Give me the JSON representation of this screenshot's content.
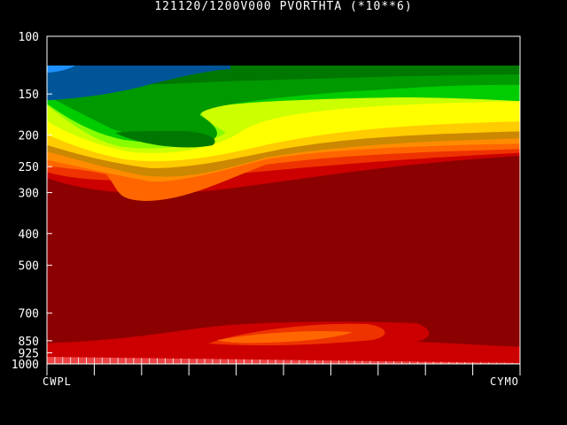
{
  "title": "121120/1200V000   PVORTHTA (*10**6)",
  "chart_data": {
    "type": "heatmap",
    "title": "121120/1200V000   PVORTHTA (*10**6)",
    "xlabel": "",
    "ylabel": "",
    "x_stations": [
      "CWPL",
      "CYMO"
    ],
    "y_axis": {
      "scale": "log",
      "reversed": true,
      "range": [
        1000,
        100
      ],
      "ticks": [
        100,
        150,
        200,
        250,
        300,
        400,
        500,
        700,
        850,
        925,
        1000
      ],
      "tick_labels": [
        "100",
        "150",
        "200",
        "250",
        "300",
        "400",
        "500",
        "700",
        "850",
        "925",
        "1000"
      ]
    },
    "x_ticks_count": 10,
    "colors": {
      "background": "#000000",
      "level_1": "#8b0000",
      "level_2": "#cc0000",
      "level_3": "#ee3300",
      "level_4": "#ff6600",
      "level_5": "#ff8c00",
      "level_6": "#cc8800",
      "level_7": "#ffcc00",
      "level_8": "#ffff00",
      "level_9": "#ccff00",
      "level_10": "#88ff00",
      "level_11": "#00cc00",
      "level_12": "#009900",
      "level_13": "#007700",
      "level_14": "#005599",
      "level_15": "#1e90ff",
      "terrain": "#ee4444"
    }
  }
}
